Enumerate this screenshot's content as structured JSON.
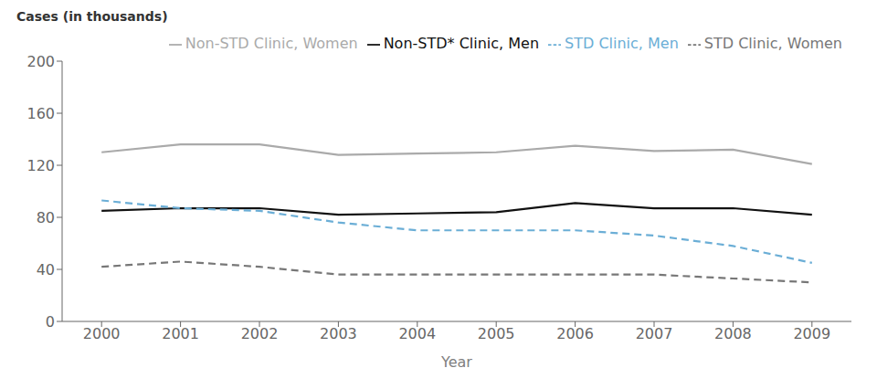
{
  "chart_data": {
    "type": "line",
    "xlabel": "Year",
    "ylabel": "Cases (in thousands)",
    "x": [
      2000,
      2001,
      2002,
      2003,
      2004,
      2005,
      2006,
      2007,
      2008,
      2009
    ],
    "xlim": [
      1999.5,
      2009.5
    ],
    "xticks": [
      2000,
      2001,
      2002,
      2003,
      2004,
      2005,
      2006,
      2007,
      2008,
      2009
    ],
    "ylim": [
      0,
      200
    ],
    "yticks": [
      0,
      40,
      80,
      120,
      160,
      200
    ],
    "grid": false,
    "legend": "upper right",
    "series": [
      {
        "name": "Non-STD* Clinic, Men",
        "color": "#111111",
        "line_style": "solid",
        "values": [
          85,
          87,
          87,
          82,
          83,
          84,
          91,
          87,
          87,
          82
        ]
      },
      {
        "name": "Non-STD Clinic, Women",
        "color": "#aaaaaa",
        "line_style": "solid",
        "values": [
          130,
          136,
          136,
          128,
          129,
          130,
          135,
          131,
          132,
          121
        ]
      },
      {
        "name": "STD Clinic, Men",
        "color": "#6baed6",
        "line_style": "dashed",
        "values": [
          93,
          87,
          85,
          76,
          70,
          70,
          70,
          66,
          58,
          45
        ]
      },
      {
        "name": "STD Clinic, Women",
        "color": "#777777",
        "line_style": "dashed",
        "values": [
          42,
          46,
          42,
          36,
          36,
          36,
          36,
          36,
          33,
          30
        ]
      }
    ]
  }
}
